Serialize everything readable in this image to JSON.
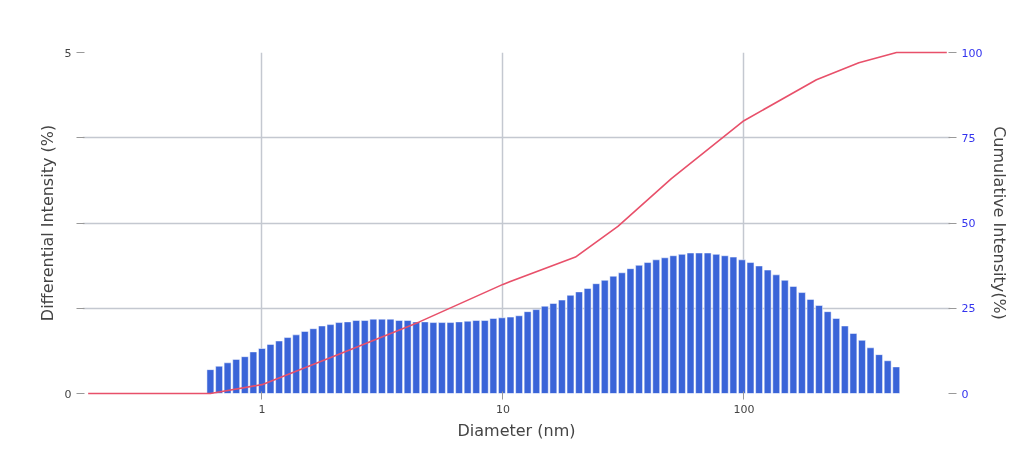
{
  "chart_data": {
    "type": "bar",
    "xlabel": "Diameter (nm)",
    "ylabel": "Differential Intensity (%)",
    "y2label": "Cumulative Intensity(%)",
    "log": "x",
    "grid": true,
    "xlim": [
      0.18,
      720
    ],
    "xticks": [
      1,
      10,
      100
    ],
    "ylim": [
      0,
      5
    ],
    "yticks": [
      0,
      {
        "value": 1.25,
        "label": null
      },
      {
        "value": 2.5,
        "label": null
      },
      {
        "value": 3.75,
        "label": null
      },
      5
    ],
    "y2lim": [
      0,
      100
    ],
    "y2ticks": [
      0,
      25,
      50,
      75,
      100
    ],
    "series": [
      {
        "color": "#3a64d8",
        "x": [
          0.611,
          0.664,
          0.72,
          0.782,
          0.849,
          0.921,
          1.0,
          1.085,
          1.178,
          1.278,
          1.387,
          1.506,
          1.634,
          1.774,
          1.925,
          2.089,
          2.267,
          2.461,
          2.671,
          2.899,
          3.147,
          3.415,
          3.707,
          4.023,
          4.367,
          4.74,
          5.144,
          5.583,
          6.06,
          6.577,
          7.138,
          7.748,
          8.409,
          9.126,
          9.904,
          10.75,
          11.67,
          12.66,
          13.75,
          14.92,
          16.19,
          17.57,
          19.07,
          20.7,
          22.46,
          24.38,
          26.46,
          28.72,
          31.17,
          33.83,
          36.73,
          39.86,
          43.26,
          46.96,
          50.96,
          55.32,
          60.04,
          65.16,
          70.72,
          76.76,
          83.32,
          90.43,
          98.15,
          106.5,
          115.6,
          125.5,
          136.2,
          147.8,
          160.4,
          174.1,
          189.0,
          205.1,
          222.6,
          241.6,
          262.3,
          284.7,
          309.0,
          335.3,
          363.9,
          395.0,
          428.7
        ],
        "values": [
          0.35,
          0.4,
          0.45,
          0.5,
          0.54,
          0.61,
          0.66,
          0.72,
          0.77,
          0.82,
          0.86,
          0.91,
          0.95,
          0.99,
          1.01,
          1.04,
          1.05,
          1.07,
          1.07,
          1.09,
          1.09,
          1.09,
          1.07,
          1.07,
          1.05,
          1.05,
          1.04,
          1.04,
          1.04,
          1.05,
          1.06,
          1.07,
          1.07,
          1.1,
          1.11,
          1.12,
          1.14,
          1.2,
          1.23,
          1.28,
          1.32,
          1.37,
          1.44,
          1.49,
          1.54,
          1.61,
          1.66,
          1.72,
          1.77,
          1.83,
          1.88,
          1.92,
          1.96,
          1.99,
          2.02,
          2.04,
          2.06,
          2.06,
          2.06,
          2.04,
          2.02,
          2.0,
          1.96,
          1.92,
          1.87,
          1.81,
          1.74,
          1.66,
          1.57,
          1.48,
          1.38,
          1.29,
          1.2,
          1.1,
          0.99,
          0.88,
          0.78,
          0.67,
          0.57,
          0.48,
          0.39
        ]
      },
      {
        "type": "line",
        "axis": "y2",
        "color": "#e8506a",
        "x": [
          0.19,
          0.611,
          1,
          2,
          4.5,
          10,
          20,
          30,
          50,
          100,
          200,
          300,
          430,
          695
        ],
        "values": [
          0,
          0,
          2.6,
          11,
          21,
          32,
          40,
          49,
          63,
          80,
          92,
          97,
          100,
          100
        ]
      }
    ]
  }
}
